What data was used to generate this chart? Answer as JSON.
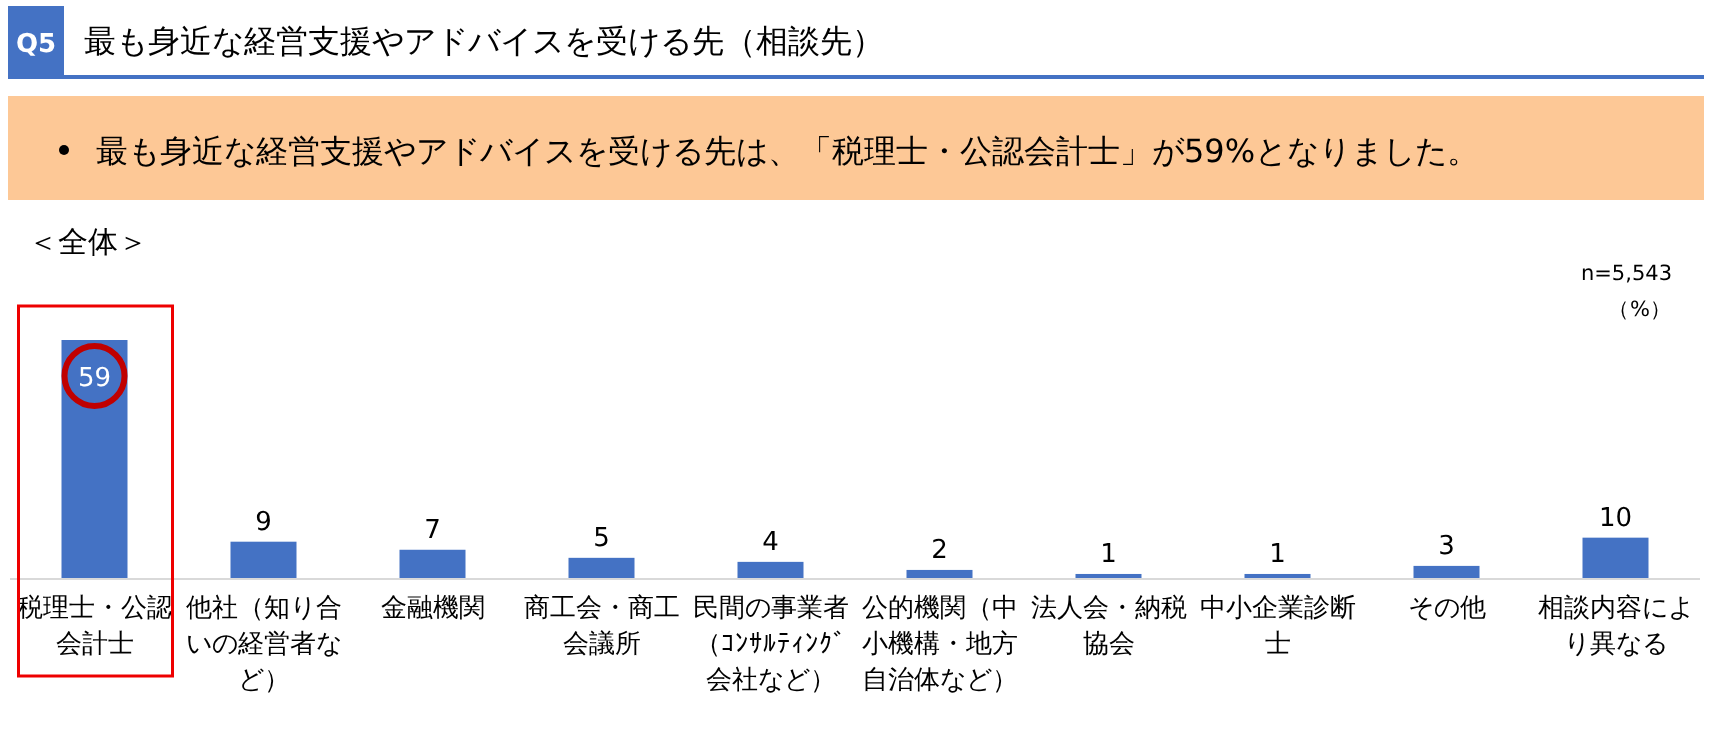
{
  "chart_data": {
    "type": "bar",
    "title": "最も身近な経営支援やアドバイスを受ける先（相談先）",
    "subtitle": "最も身近な経営支援やアドバイスを受ける先は、「税理士・公認会計士」が59%となりました。",
    "annotations": [
      "Q5",
      "＜全体＞",
      "n=5,543",
      "（%）"
    ],
    "categories": [
      "税理士・公認会計士",
      "他社（知り合いの経営者など）",
      "金融機関",
      "商工会・商工会議所",
      "民間の事業者（ｺﾝｻﾙﾃｨﾝｸﾞ会社など）",
      "公的機関（中小機構・地方自治体など）",
      "法人会・納税協会",
      "中小企業診断士",
      "その他",
      "相談内容により異なる"
    ],
    "values": [
      59,
      9,
      7,
      5,
      4,
      2,
      1,
      1,
      3,
      10
    ],
    "color": "#4472c4",
    "data_labels": true
  }
}
